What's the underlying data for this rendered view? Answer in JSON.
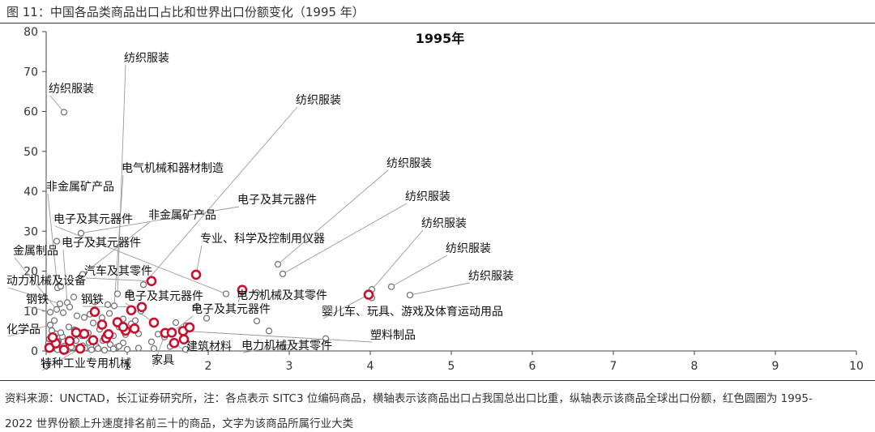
{
  "figure": {
    "title": "图 11：中国各品类商品出口占比和世界出口份额变化（1995 年）",
    "source_line1": "资料来源：UNCTAD，长江证券研究所，注：各点表示 SITC3 位编码商品，横轴表示该商品出口占我国总出口比重，纵轴表示该商品全球出口份额，红色圆圈为 1995-",
    "source_line2": "2022 世界份额上升速度排名前三十的商品，文字为该商品所属行业大类"
  },
  "chart_data": {
    "type": "scatter",
    "title": "1995年",
    "xlabel": "",
    "ylabel": "",
    "xlim": [
      0,
      10
    ],
    "ylim": [
      0,
      80
    ],
    "x_ticks": [
      0,
      1,
      2,
      3,
      4,
      5,
      6,
      7,
      8,
      9,
      10
    ],
    "y_ticks": [
      0,
      10,
      20,
      30,
      40,
      50,
      60,
      70,
      80
    ],
    "grid": false,
    "legend": "none",
    "colors": {
      "grey_marker": "#6e6e6e",
      "red_marker": "#c8102e",
      "leader": "#9a9a9a"
    },
    "series": [
      {
        "key": "other",
        "marker": "grey-open-circle",
        "points": [
          [
            0.22,
            59.8
          ],
          [
            0.43,
            29.5
          ],
          [
            0.13,
            27.5
          ],
          [
            0.14,
            15.8
          ],
          [
            0.18,
            16.2
          ],
          [
            0.26,
            12.1
          ],
          [
            0.17,
            11.8
          ],
          [
            0.05,
            9.7
          ],
          [
            0.13,
            10.4
          ],
          [
            0.21,
            9.6
          ],
          [
            0.29,
            11.0
          ],
          [
            0.38,
            8.8
          ],
          [
            0.47,
            8.4
          ],
          [
            0.54,
            9.2
          ],
          [
            0.6,
            12.3
          ],
          [
            0.69,
            8.3
          ],
          [
            0.78,
            9.4
          ],
          [
            0.84,
            11.3
          ],
          [
            0.88,
            14.3
          ],
          [
            0.66,
            5.4
          ],
          [
            0.05,
            6.5
          ],
          [
            0.12,
            4.3
          ],
          [
            0.2,
            3.6
          ],
          [
            0.28,
            6.0
          ],
          [
            0.35,
            5.3
          ],
          [
            0.44,
            3.8
          ],
          [
            0.52,
            4.5
          ],
          [
            0.59,
            3.0
          ],
          [
            0.67,
            6.7
          ],
          [
            0.74,
            4.2
          ],
          [
            0.83,
            3.8
          ],
          [
            0.9,
            6.0
          ],
          [
            0.98,
            4.1
          ],
          [
            1.05,
            6.8
          ],
          [
            1.14,
            4.3
          ],
          [
            1.2,
            16.6
          ],
          [
            1.1,
            7.6
          ],
          [
            0.03,
            2.0
          ],
          [
            0.09,
            1.5
          ],
          [
            0.15,
            2.4
          ],
          [
            0.22,
            1.2
          ],
          [
            0.3,
            1.9
          ],
          [
            0.37,
            2.6
          ],
          [
            0.45,
            1.3
          ],
          [
            0.53,
            2.1
          ],
          [
            0.62,
            1.1
          ],
          [
            0.7,
            2.6
          ],
          [
            0.79,
            1.6
          ],
          [
            0.87,
            0.9
          ],
          [
            0.95,
            2.0
          ],
          [
            0.03,
            0.4
          ],
          [
            0.08,
            0.9
          ],
          [
            0.14,
            0.3
          ],
          [
            0.2,
            0.6
          ],
          [
            0.26,
            0.2
          ],
          [
            0.33,
            0.8
          ],
          [
            0.4,
            0.4
          ],
          [
            0.48,
            0.7
          ],
          [
            0.56,
            0.3
          ],
          [
            0.64,
            0.6
          ],
          [
            0.72,
            0.2
          ],
          [
            0.83,
            0.5
          ],
          [
            0.9,
            1.2
          ],
          [
            1.0,
            0.4
          ],
          [
            1.14,
            0.7
          ],
          [
            1.3,
            2.3
          ],
          [
            1.38,
            4.2
          ],
          [
            1.46,
            3.5
          ],
          [
            1.6,
            7.1
          ],
          [
            1.73,
            6.3
          ],
          [
            1.86,
            11.2
          ],
          [
            1.98,
            8.2
          ],
          [
            2.22,
            14.3
          ],
          [
            2.6,
            14.6
          ],
          [
            2.86,
            21.7
          ],
          [
            2.92,
            19.3
          ],
          [
            2.6,
            7.5
          ],
          [
            4.02,
            15.4
          ],
          [
            4.02,
            13.3
          ],
          [
            4.26,
            16.1
          ],
          [
            4.49,
            14.0
          ],
          [
            3.45,
            3.1
          ],
          [
            2.75,
            5.0
          ],
          [
            2.92,
            1.0
          ],
          [
            1.33,
            0.6
          ],
          [
            1.53,
            1.1
          ],
          [
            1.72,
            0.4
          ],
          [
            0.04,
            3.0
          ],
          [
            0.07,
            5.1
          ],
          [
            0.1,
            7.6
          ],
          [
            0.02,
            1.1
          ],
          [
            1.03,
            14.6
          ],
          [
            0.45,
            19.2
          ],
          [
            0.31,
            1.0
          ],
          [
            0.76,
            11.6
          ],
          [
            1.17,
            10.0
          ],
          [
            0.58,
            7.0
          ],
          [
            0.95,
            8.0
          ],
          [
            0.34,
            13.5
          ],
          [
            0.18,
            4.6
          ]
        ]
      },
      {
        "key": "top30_rising",
        "marker": "red-open-circle",
        "points": [
          [
            0.04,
            0.8
          ],
          [
            0.12,
            1.9
          ],
          [
            0.08,
            3.4
          ],
          [
            0.29,
            2.5
          ],
          [
            0.37,
            4.6
          ],
          [
            0.47,
            4.3
          ],
          [
            0.42,
            0.6
          ],
          [
            0.58,
            2.7
          ],
          [
            0.74,
            3.2
          ],
          [
            0.69,
            6.6
          ],
          [
            0.77,
            4.2
          ],
          [
            0.88,
            7.2
          ],
          [
            0.98,
            5.1
          ],
          [
            1.09,
            5.6
          ],
          [
            1.18,
            11.0
          ],
          [
            1.33,
            7.1
          ],
          [
            1.47,
            4.5
          ],
          [
            1.55,
            4.6
          ],
          [
            1.85,
            19.1
          ],
          [
            2.42,
            15.3
          ],
          [
            1.69,
            5.0
          ],
          [
            1.77,
            5.9
          ],
          [
            1.7,
            2.9
          ],
          [
            1.58,
            2.0
          ],
          [
            3.98,
            14.1
          ],
          [
            0.6,
            9.8
          ],
          [
            1.05,
            10.2
          ],
          [
            0.95,
            6.0
          ],
          [
            0.22,
            0.3
          ],
          [
            1.3,
            17.5
          ]
        ]
      }
    ],
    "annotations": [
      {
        "text": "纺织服装",
        "point": [
          0.22,
          59.8
        ]
      },
      {
        "text": "纺织服装",
        "point": [
          0.88,
          14.3
        ]
      },
      {
        "text": "纺织服装",
        "point": [
          1.2,
          16.6
        ]
      },
      {
        "text": "纺织服装",
        "point": [
          2.86,
          21.7
        ]
      },
      {
        "text": "纺织服装",
        "point": [
          2.92,
          19.3
        ]
      },
      {
        "text": "纺织服装",
        "point": [
          4.02,
          15.4
        ]
      },
      {
        "text": "纺织服装",
        "point": [
          4.26,
          16.1
        ]
      },
      {
        "text": "纺织服装",
        "point": [
          4.49,
          14.0
        ]
      },
      {
        "text": "非金属矿产品",
        "point": [
          0.14,
          15.8
        ]
      },
      {
        "text": "电气机械和器材制造",
        "point": [
          0.84,
          11.3
        ]
      },
      {
        "text": "电子及其元器件",
        "point": [
          0.43,
          29.5
        ]
      },
      {
        "text": "电子及其元器件",
        "point": [
          2.22,
          14.3
        ]
      },
      {
        "text": "电子及其元器件",
        "point": [
          0.26,
          12.1
        ]
      },
      {
        "text": "电子及其元器件",
        "point": [
          1.33,
          7.1
        ]
      },
      {
        "text": "电子及其元器件",
        "point": [
          1.55,
          4.6
        ]
      },
      {
        "text": "非金属矿产品",
        "point": [
          0.45,
          19.2
        ]
      },
      {
        "text": "专业、科学及控制用仪器",
        "point": [
          1.85,
          19.1
        ]
      },
      {
        "text": "金属制品",
        "point": [
          0.13,
          10.4
        ]
      },
      {
        "text": "汽车及其零件",
        "point": [
          1.3,
          17.5
        ]
      },
      {
        "text": "动力机械及设备",
        "point": [
          0.18,
          11.8
        ]
      },
      {
        "text": "钢铁",
        "point": [
          0.05,
          9.7
        ]
      },
      {
        "text": "钢铁",
        "point": [
          1.18,
          11.0
        ]
      },
      {
        "text": "化学品",
        "point": [
          0.05,
          6.5
        ]
      },
      {
        "text": "电力机械及其零件",
        "point": [
          2.42,
          15.3
        ]
      },
      {
        "text": "电力机械及其零件",
        "point": [
          3.45,
          3.1
        ]
      },
      {
        "text": "婴儿车、玩具、游戏及体育运动用品",
        "point": [
          3.98,
          14.1
        ]
      },
      {
        "text": "塑料制品",
        "point": [
          1.69,
          5.0
        ]
      },
      {
        "text": "建筑材料",
        "point": [
          1.58,
          2.0
        ]
      },
      {
        "text": "特种工业专用机械",
        "point": [
          0.42,
          0.6
        ]
      },
      {
        "text": "家具",
        "point": [
          1.47,
          4.5
        ]
      }
    ]
  }
}
